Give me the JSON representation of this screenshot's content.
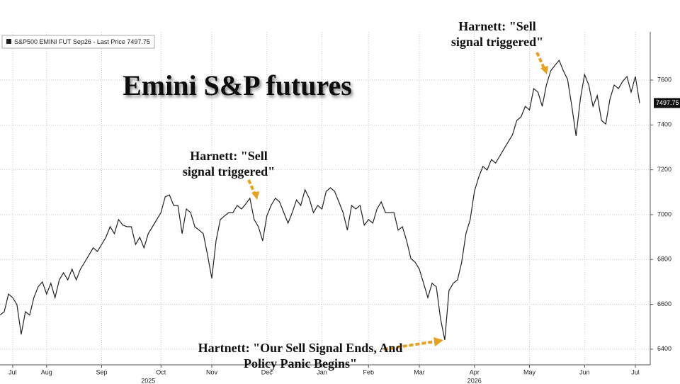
{
  "chart_data": {
    "type": "line",
    "title": "Emini S&P futures",
    "series": [
      {
        "name": "S&P500 EMINI FUT Sep26 - Last Price 7497.75",
        "color": "#222222",
        "values": [
          6552,
          6567,
          6646,
          6630,
          6599,
          6466,
          6567,
          6552,
          6630,
          6678,
          6700,
          6646,
          6694,
          6630,
          6709,
          6741,
          6709,
          6757,
          6709,
          6757,
          6788,
          6820,
          6852,
          6836,
          6867,
          6899,
          6946,
          6915,
          6978,
          6953,
          6946,
          6946,
          6867,
          6899,
          6852,
          6915,
          6946,
          6978,
          7009,
          7079,
          7088,
          7041,
          7041,
          6915,
          7025,
          7009,
          6946,
          6931,
          6915,
          6820,
          6716,
          6883,
          6978,
          6994,
          7009,
          7009,
          7041,
          7025,
          7047,
          7073,
          6978,
          6946,
          6883,
          6994,
          7041,
          7073,
          7057,
          7009,
          6962,
          7009,
          7066,
          7041,
          7111,
          7073,
          7009,
          7041,
          7025,
          7104,
          7120,
          7104,
          7057,
          7009,
          6931,
          7041,
          7025,
          7041,
          6953,
          6978,
          6962,
          7025,
          7057,
          7009,
          7009,
          7009,
          6931,
          6946,
          6883,
          6804,
          6788,
          6757,
          6694,
          6630,
          6694,
          6678,
          6536,
          6441,
          6662,
          6694,
          6709,
          6788,
          6915,
          6978,
          7104,
          7167,
          7215,
          7199,
          7246,
          7230,
          7262,
          7294,
          7325,
          7357,
          7420,
          7436,
          7483,
          7467,
          7562,
          7546,
          7483,
          7578,
          7641,
          7666,
          7688,
          7641,
          7603,
          7483,
          7351,
          7515,
          7625,
          7578,
          7483,
          7531,
          7420,
          7404,
          7515,
          7578,
          7562,
          7594,
          7616,
          7546,
          7616,
          7497.75
        ]
      }
    ],
    "xlim": [
      0,
      151
    ],
    "xticks": [
      {
        "value": 3,
        "label": "Jul"
      },
      {
        "value": 11,
        "label": "Aug"
      },
      {
        "value": 24,
        "label": "Sep"
      },
      {
        "value": 38,
        "label": "Oct"
      },
      {
        "value": 50,
        "label": "Nov"
      },
      {
        "value": 63,
        "label": "Dec"
      },
      {
        "value": 76,
        "label": "Jan"
      },
      {
        "value": 87,
        "label": "Feb"
      },
      {
        "value": 99,
        "label": "Mar"
      },
      {
        "value": 112,
        "label": "Apr"
      },
      {
        "value": 125,
        "label": "May"
      },
      {
        "value": 138,
        "label": "Jun"
      },
      {
        "value": 150,
        "label": "Jul"
      }
    ],
    "year_labels": [
      {
        "value": 35,
        "label": "2025"
      },
      {
        "value": 112,
        "label": "2026"
      }
    ],
    "ylim": [
      6330,
      7815
    ],
    "yticks": [
      6400,
      6600,
      6800,
      7000,
      7200,
      7400,
      7600
    ],
    "grid": true,
    "annotations": [
      {
        "lines": [
          "Harnett: \"Sell",
          "signal triggered\""
        ]
      },
      {
        "lines": [
          "Harnett: \"Sell",
          "signal triggered\""
        ]
      },
      {
        "lines": [
          "Hartnett: \"Our Sell Signal Ends, And",
          "Policy Panic Begins\""
        ]
      }
    ]
  }
}
